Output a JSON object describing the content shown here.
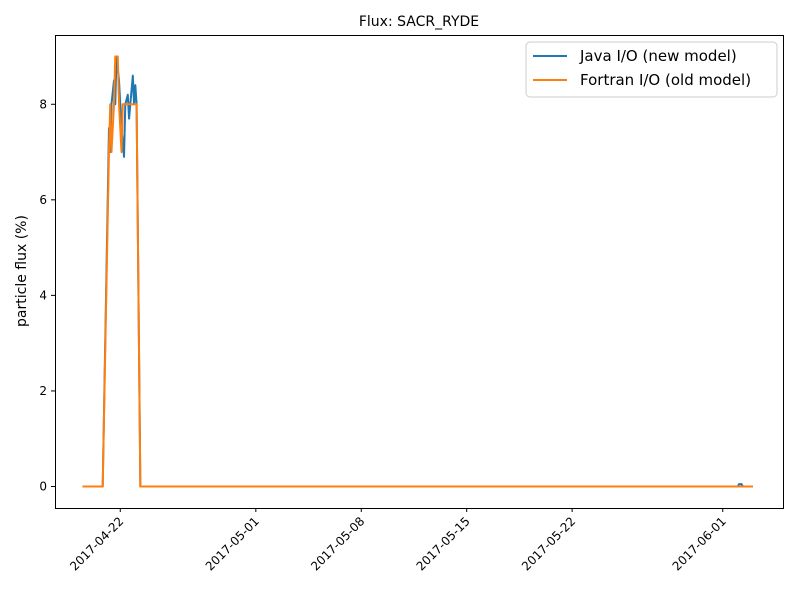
{
  "chart_data": {
    "type": "line",
    "title": "Flux: SACR_RYDE",
    "xlabel": "",
    "ylabel": "particle flux (%)",
    "x_ticks": [
      "2017-04-22",
      "2017-05-01",
      "2017-05-08",
      "2017-05-15",
      "2017-05-22",
      "2017-06-01"
    ],
    "xlim": [
      "2017-04-17 16:00",
      "2017-06-05 00:00"
    ],
    "ylim": [
      -0.45,
      9.45
    ],
    "y_ticks": [
      0,
      2,
      4,
      6,
      8
    ],
    "legend": "top-right",
    "grid": false,
    "series": [
      {
        "name": "Java I/O (new model)",
        "color": "#1f77b4",
        "points": [
          [
            "2017-04-19 12:00",
            0
          ],
          [
            "2017-04-20 20:00",
            0
          ],
          [
            "2017-04-21 06:00",
            7.5
          ],
          [
            "2017-04-21 08:00",
            7.0
          ],
          [
            "2017-04-21 10:00",
            8.0
          ],
          [
            "2017-04-21 14:00",
            8.5
          ],
          [
            "2017-04-21 16:00",
            8.0
          ],
          [
            "2017-04-21 18:00",
            9.0
          ],
          [
            "2017-04-21 22:00",
            8.5
          ],
          [
            "2017-04-22 02:00",
            7.5
          ],
          [
            "2017-04-22 06:00",
            6.9
          ],
          [
            "2017-04-22 08:00",
            8.0
          ],
          [
            "2017-04-22 12:00",
            8.2
          ],
          [
            "2017-04-22 14:00",
            7.7
          ],
          [
            "2017-04-22 16:00",
            8.0
          ],
          [
            "2017-04-22 20:00",
            8.6
          ],
          [
            "2017-04-22 22:00",
            8.0
          ],
          [
            "2017-04-23 00:00",
            8.4
          ],
          [
            "2017-04-23 02:00",
            8.0
          ],
          [
            "2017-04-23 08:00",
            0
          ],
          [
            "2017-06-02 00:00",
            0
          ],
          [
            "2017-06-02 02:00",
            0.05
          ],
          [
            "2017-06-02 06:00",
            0.05
          ],
          [
            "2017-06-02 08:00",
            0
          ],
          [
            "2017-06-03 00:00",
            0
          ]
        ]
      },
      {
        "name": "Fortran I/O (old model)",
        "color": "#ff7f0e",
        "points": [
          [
            "2017-04-19 12:00",
            0
          ],
          [
            "2017-04-20 20:00",
            0
          ],
          [
            "2017-04-21 06:00",
            7.0
          ],
          [
            "2017-04-21 08:00",
            8.0
          ],
          [
            "2017-04-21 10:00",
            7.0
          ],
          [
            "2017-04-21 14:00",
            8.0
          ],
          [
            "2017-04-21 16:00",
            9.0
          ],
          [
            "2017-04-21 20:00",
            9.0
          ],
          [
            "2017-04-21 22:00",
            8.0
          ],
          [
            "2017-04-22 02:00",
            7.0
          ],
          [
            "2017-04-22 04:00",
            8.0
          ],
          [
            "2017-04-22 06:00",
            8.0
          ],
          [
            "2017-04-23 02:00",
            8.0
          ],
          [
            "2017-04-23 08:00",
            0
          ],
          [
            "2017-06-03 00:00",
            0
          ]
        ]
      }
    ]
  }
}
